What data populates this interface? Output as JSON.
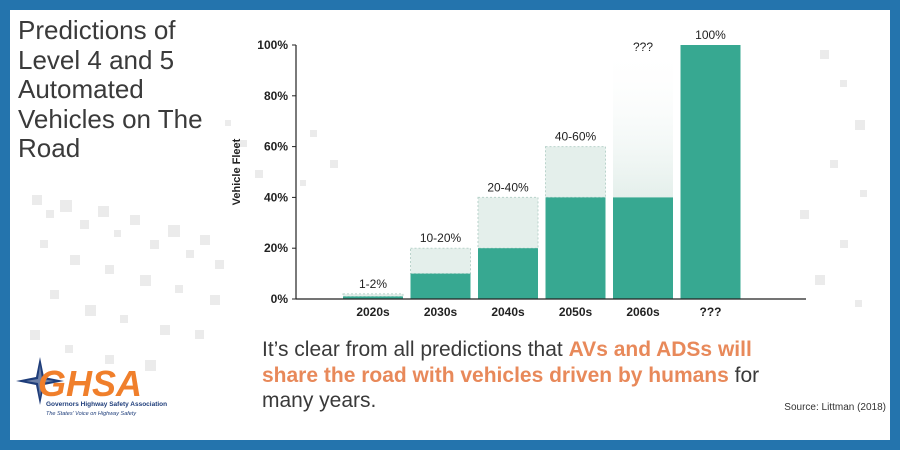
{
  "title": "Predictions of Level 4 and 5 Automated Vehicles on The Road",
  "message": {
    "part1": "It’s clear from all predictions that ",
    "highlight1": "AVs and ADSs will share the road with vehicles driven by humans",
    "part2": " for many years."
  },
  "source": "Source: Littman (2018)",
  "logo": {
    "text": "GHSA",
    "name": "Governors Highway Safety Association",
    "tagline": "The States' Voice on Highway Safety"
  },
  "colors": {
    "frame": "#2474ad",
    "bar_solid": "#37a891",
    "bar_range": "#e4efeb",
    "highlight": "#e8895a",
    "text": "#3a3a3a"
  },
  "chart_data": {
    "type": "bar",
    "ylabel": "Vehicle Fleet",
    "ylim": [
      0,
      100
    ],
    "yticks": [
      "0%",
      "20%",
      "40%",
      "60%",
      "80%",
      "100%"
    ],
    "categories": [
      "2020s",
      "2030s",
      "2040s",
      "2050s",
      "2060s",
      "???"
    ],
    "low": [
      1,
      10,
      20,
      40,
      40,
      100
    ],
    "high": [
      2,
      20,
      40,
      60,
      100,
      100
    ],
    "labels": [
      "1-2%",
      "10-20%",
      "20-40%",
      "40-60%",
      "???",
      "100%"
    ]
  }
}
